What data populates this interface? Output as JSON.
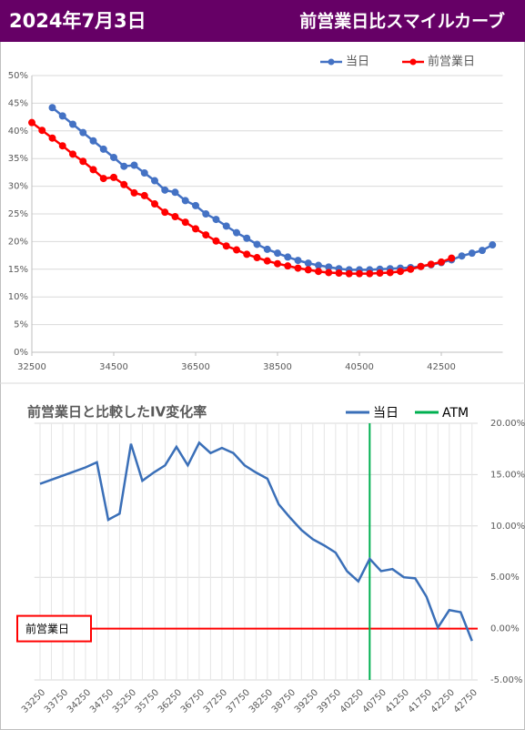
{
  "header": {
    "date": "2024年7月3日",
    "title": "前営業日比スマイルカーブ"
  },
  "chart_data": [
    {
      "type": "line",
      "markers": true,
      "legend": "top",
      "xlim": [
        32500,
        44000
      ],
      "xticks": [
        32500,
        34500,
        36500,
        38500,
        40500,
        42500
      ],
      "ylim": [
        0,
        50
      ],
      "yticks": [
        {
          "value": 0,
          "label": "0%"
        },
        {
          "value": 5,
          "label": "5%"
        },
        {
          "value": 10,
          "label": "10%"
        },
        {
          "value": 15,
          "label": "15%"
        },
        {
          "value": 20,
          "label": "20%"
        },
        {
          "value": 25,
          "label": "25%"
        },
        {
          "value": 30,
          "label": "30%"
        },
        {
          "value": 35,
          "label": "35%"
        },
        {
          "value": 40,
          "label": "40%"
        },
        {
          "value": 45,
          "label": "45%"
        },
        {
          "value": 50,
          "label": "50%"
        }
      ],
      "grid": true,
      "series": [
        {
          "name": "当日",
          "color": "#4472c4",
          "x": [
            33000,
            33250,
            33500,
            33750,
            34000,
            34250,
            34500,
            34750,
            35000,
            35250,
            35500,
            35750,
            36000,
            36250,
            36500,
            36750,
            37000,
            37250,
            37500,
            37750,
            38000,
            38250,
            38500,
            38750,
            39000,
            39250,
            39500,
            39750,
            40000,
            40250,
            40500,
            40750,
            41000,
            41250,
            41500,
            41750,
            42000,
            42250,
            42500,
            42750,
            43000,
            43250,
            43500,
            43750
          ],
          "values": [
            44.2,
            42.7,
            41.2,
            39.7,
            38.2,
            36.7,
            35.2,
            33.6,
            33.8,
            32.4,
            31.0,
            29.3,
            28.9,
            27.4,
            26.5,
            25.0,
            24.0,
            22.8,
            21.6,
            20.6,
            19.5,
            18.6,
            17.9,
            17.2,
            16.6,
            16.1,
            15.7,
            15.4,
            15.1,
            14.9,
            14.9,
            14.9,
            15.0,
            15.1,
            15.2,
            15.3,
            15.5,
            15.8,
            16.2,
            16.7,
            17.4,
            17.9,
            18.4,
            19.4
          ]
        },
        {
          "name": "前営業日",
          "color": "#ff0000",
          "x": [
            32500,
            32750,
            33000,
            33250,
            33500,
            33750,
            34000,
            34250,
            34500,
            34750,
            35000,
            35250,
            35500,
            35750,
            36000,
            36250,
            36500,
            36750,
            37000,
            37250,
            37500,
            37750,
            38000,
            38250,
            38500,
            38750,
            39000,
            39250,
            39500,
            39750,
            40000,
            40250,
            40500,
            40750,
            41000,
            41250,
            41500,
            41750,
            42000,
            42250,
            42500,
            42750
          ],
          "values": [
            41.5,
            40.1,
            38.7,
            37.3,
            35.8,
            34.5,
            33.0,
            31.4,
            31.6,
            30.3,
            28.8,
            28.3,
            26.8,
            25.3,
            24.5,
            23.5,
            22.3,
            21.2,
            20.1,
            19.2,
            18.5,
            17.7,
            17.1,
            16.5,
            16.0,
            15.6,
            15.2,
            14.9,
            14.6,
            14.4,
            14.3,
            14.2,
            14.2,
            14.2,
            14.3,
            14.4,
            14.6,
            15.0,
            15.5,
            15.9,
            16.3,
            17.0
          ]
        }
      ]
    },
    {
      "type": "line",
      "markers": false,
      "title": "前営業日と比較したIV変化率",
      "legend": "top-right",
      "xlim": [
        33125,
        42875
      ],
      "xticks": [
        33250,
        33750,
        34250,
        34750,
        35250,
        35750,
        36250,
        36750,
        37250,
        37750,
        38250,
        38750,
        39250,
        39750,
        40250,
        40750,
        41250,
        41750,
        42250,
        42750
      ],
      "y2lim": [
        -5,
        20
      ],
      "y2ticks": [
        {
          "value": 20,
          "label": "20.00%"
        },
        {
          "value": 15,
          "label": "15.00%"
        },
        {
          "value": 10,
          "label": "10.00%"
        },
        {
          "value": 5,
          "label": "5.00%"
        },
        {
          "value": 0,
          "label": "0.00%"
        },
        {
          "value": -5,
          "label": "-5.00%"
        }
      ],
      "grid": true,
      "series": [
        {
          "name": "当日",
          "color": "#3a6fb8",
          "axis": "y2",
          "x": [
            33250,
            33500,
            33750,
            34000,
            34250,
            34500,
            34750,
            35000,
            35250,
            35500,
            35750,
            36000,
            36250,
            36500,
            36750,
            37000,
            37250,
            37500,
            37750,
            38000,
            38250,
            38500,
            38750,
            39000,
            39250,
            39500,
            39750,
            40000,
            40250,
            40500,
            40750,
            41000,
            41250,
            41500,
            41750,
            42000,
            42250,
            42500,
            42750
          ],
          "values": [
            14.1,
            14.5,
            14.9,
            15.3,
            15.7,
            16.2,
            10.6,
            11.2,
            18.0,
            14.4,
            15.2,
            15.9,
            17.7,
            15.9,
            18.1,
            17.1,
            17.6,
            17.1,
            15.9,
            15.2,
            14.6,
            12.1,
            10.8,
            9.6,
            8.7,
            8.1,
            7.4,
            5.6,
            4.6,
            6.8,
            5.6,
            5.8,
            5.0,
            4.9,
            3.1,
            0.1,
            1.8,
            1.6,
            -1.2
          ]
        }
      ],
      "reference_lines": [
        {
          "name": "ATM",
          "color": "#00b050",
          "x": 40500
        }
      ],
      "annotations": [
        {
          "label": "前営業日",
          "color": "#ff0000",
          "y": 0
        }
      ]
    }
  ]
}
